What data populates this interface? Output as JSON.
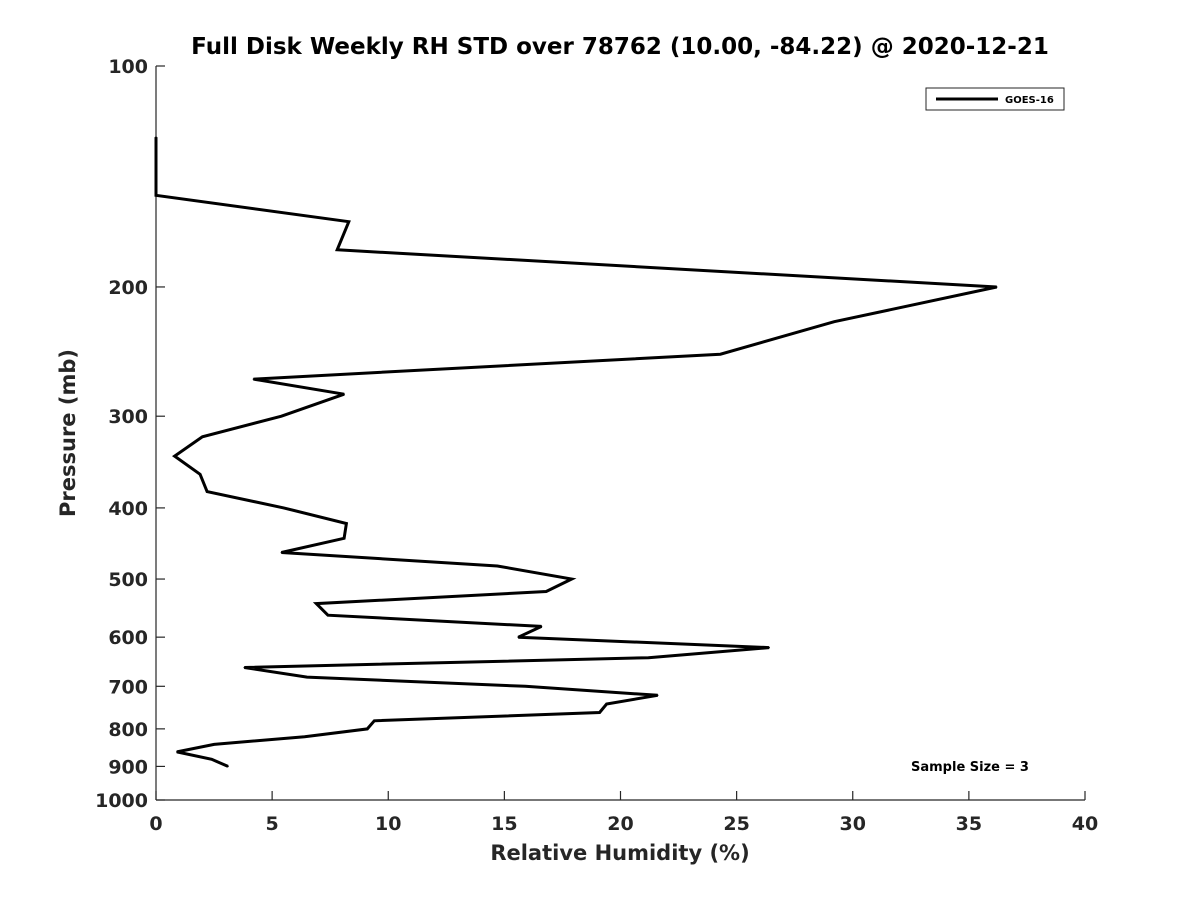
{
  "chart_data": {
    "type": "line",
    "title": "Full Disk Weekly RH STD over 78762 (10.00, -84.22) @ 2020-12-21",
    "xlabel": "Relative Humidity (%)",
    "ylabel": "Pressure (mb)",
    "xlim": [
      0,
      40
    ],
    "ylim": [
      100,
      1000
    ],
    "y_scale": "log",
    "y_reversed": true,
    "grid": false,
    "legend_position": "top-right",
    "x_ticks": [
      0,
      5,
      10,
      15,
      20,
      25,
      30,
      35,
      40
    ],
    "x_tick_labels": [
      "0",
      "5",
      "10",
      "15",
      "20",
      "25",
      "30",
      "35",
      "40"
    ],
    "y_ticks": [
      100,
      200,
      300,
      400,
      500,
      600,
      700,
      800,
      900,
      1000
    ],
    "y_tick_labels": [
      "100",
      "200",
      "300",
      "400",
      "500",
      "600",
      "700",
      "800",
      "900",
      "1000"
    ],
    "series": [
      {
        "name": "GOES-16",
        "color": "#000000",
        "points": [
          {
            "rh": 0.0,
            "p": 125
          },
          {
            "rh": 0.0,
            "p": 150
          },
          {
            "rh": 8.3,
            "p": 163
          },
          {
            "rh": 7.8,
            "p": 178
          },
          {
            "rh": 36.2,
            "p": 200
          },
          {
            "rh": 29.2,
            "p": 223
          },
          {
            "rh": 24.3,
            "p": 247
          },
          {
            "rh": 4.2,
            "p": 267
          },
          {
            "rh": 8.1,
            "p": 280
          },
          {
            "rh": 5.4,
            "p": 300
          },
          {
            "rh": 2.0,
            "p": 320
          },
          {
            "rh": 0.8,
            "p": 340
          },
          {
            "rh": 1.9,
            "p": 360
          },
          {
            "rh": 2.2,
            "p": 380
          },
          {
            "rh": 5.5,
            "p": 400
          },
          {
            "rh": 8.2,
            "p": 420
          },
          {
            "rh": 8.1,
            "p": 440
          },
          {
            "rh": 5.4,
            "p": 460
          },
          {
            "rh": 14.7,
            "p": 480
          },
          {
            "rh": 17.9,
            "p": 500
          },
          {
            "rh": 16.8,
            "p": 520
          },
          {
            "rh": 6.9,
            "p": 540
          },
          {
            "rh": 7.4,
            "p": 560
          },
          {
            "rh": 16.6,
            "p": 580
          },
          {
            "rh": 15.6,
            "p": 600
          },
          {
            "rh": 26.4,
            "p": 620
          },
          {
            "rh": 21.2,
            "p": 640
          },
          {
            "rh": 3.8,
            "p": 660
          },
          {
            "rh": 6.5,
            "p": 680
          },
          {
            "rh": 15.9,
            "p": 700
          },
          {
            "rh": 21.6,
            "p": 720
          },
          {
            "rh": 19.4,
            "p": 740
          },
          {
            "rh": 19.1,
            "p": 760
          },
          {
            "rh": 9.4,
            "p": 780
          },
          {
            "rh": 9.1,
            "p": 800
          },
          {
            "rh": 6.4,
            "p": 820
          },
          {
            "rh": 2.5,
            "p": 840
          },
          {
            "rh": 0.9,
            "p": 860
          },
          {
            "rh": 2.4,
            "p": 880
          },
          {
            "rh": 3.1,
            "p": 900
          }
        ]
      }
    ],
    "annotations": [
      {
        "text": "Sample Size = 3",
        "position": "bottom-right"
      }
    ]
  }
}
